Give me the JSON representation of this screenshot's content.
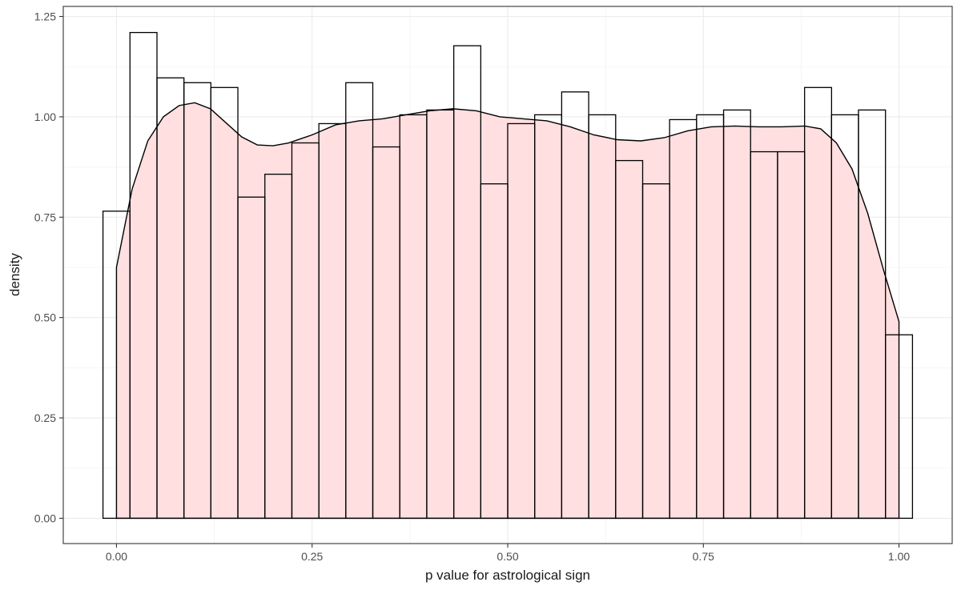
{
  "chart_data": {
    "type": "histogram+density",
    "title": "",
    "xlabel": "p value for astrological sign",
    "ylabel": "density",
    "xlim": [
      -0.068,
      1.068
    ],
    "ylim": [
      -0.063,
      1.275
    ],
    "x_ticks": [
      0.0,
      0.25,
      0.5,
      0.75,
      1.0
    ],
    "x_tick_labels": [
      "0.00",
      "0.25",
      "0.50",
      "0.75",
      "1.00"
    ],
    "y_ticks": [
      0.0,
      0.25,
      0.5,
      0.75,
      1.0,
      1.25
    ],
    "y_tick_labels": [
      "0.00",
      "0.25",
      "0.50",
      "0.75",
      "1.00",
      "1.25"
    ],
    "grid": true,
    "theme": "bw",
    "histogram": {
      "bin_width": 0.0345,
      "bin_centers": [
        0.0,
        0.0345,
        0.069,
        0.1034,
        0.1379,
        0.1724,
        0.2069,
        0.2414,
        0.2759,
        0.3103,
        0.3448,
        0.3793,
        0.4138,
        0.4483,
        0.4828,
        0.5172,
        0.5517,
        0.5862,
        0.6207,
        0.6552,
        0.6897,
        0.7241,
        0.7586,
        0.7931,
        0.8276,
        0.8621,
        0.8966,
        0.931,
        0.9655,
        1.0
      ],
      "density": [
        0.765,
        1.21,
        1.097,
        1.085,
        1.073,
        0.8,
        0.857,
        0.935,
        0.983,
        1.085,
        0.925,
        1.005,
        1.017,
        1.177,
        0.833,
        0.983,
        1.005,
        1.062,
        1.005,
        0.891,
        0.833,
        0.993,
        1.005,
        1.017,
        0.913,
        0.913,
        1.073,
        1.005,
        1.017,
        0.457
      ],
      "fill": "#ffffff",
      "stroke": "#000000"
    },
    "density_curve": {
      "x": [
        0.0,
        0.02,
        0.04,
        0.06,
        0.08,
        0.1,
        0.12,
        0.14,
        0.16,
        0.18,
        0.2,
        0.22,
        0.25,
        0.28,
        0.31,
        0.34,
        0.37,
        0.4,
        0.43,
        0.46,
        0.49,
        0.52,
        0.55,
        0.58,
        0.61,
        0.64,
        0.67,
        0.7,
        0.73,
        0.76,
        0.79,
        0.82,
        0.85,
        0.88,
        0.9,
        0.92,
        0.94,
        0.96,
        0.98,
        1.0
      ],
      "y": [
        0.625,
        0.82,
        0.94,
        1.0,
        1.028,
        1.035,
        1.02,
        0.985,
        0.95,
        0.93,
        0.928,
        0.935,
        0.955,
        0.98,
        0.99,
        0.995,
        1.005,
        1.015,
        1.02,
        1.015,
        1.0,
        0.995,
        0.99,
        0.975,
        0.955,
        0.943,
        0.94,
        0.948,
        0.965,
        0.975,
        0.977,
        0.975,
        0.975,
        0.977,
        0.97,
        0.935,
        0.87,
        0.76,
        0.62,
        0.49
      ],
      "fill": "#ffdfe0",
      "stroke": "#000000"
    }
  }
}
